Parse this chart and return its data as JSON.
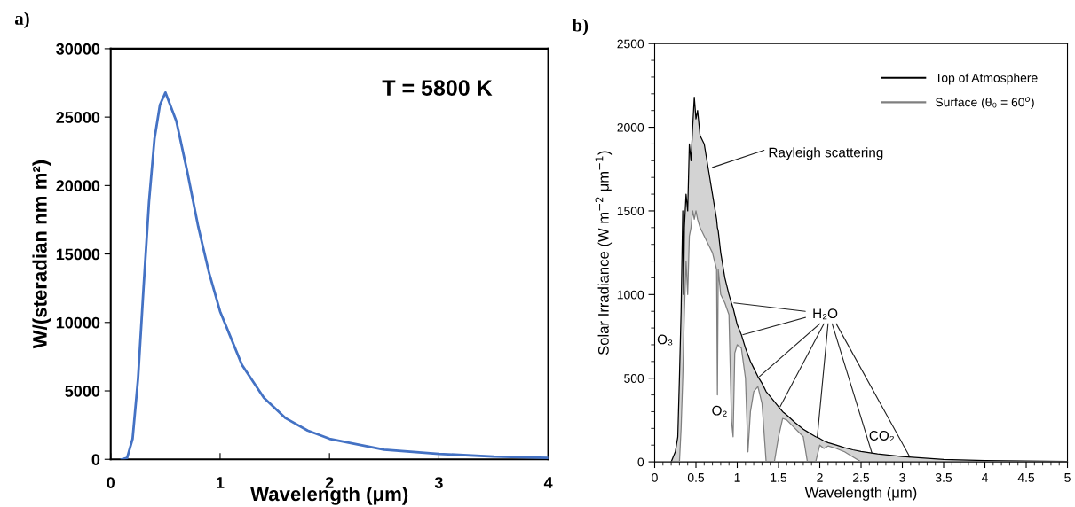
{
  "chart_data": [
    {
      "type": "line",
      "title": "a)",
      "xlabel": "Wavelength (μm)",
      "ylabel": "W/(steradian nm m²)",
      "annotations": [
        "T = 5800 K"
      ],
      "x": [
        0.1,
        0.15,
        0.2,
        0.25,
        0.3,
        0.35,
        0.4,
        0.45,
        0.5,
        0.6,
        0.7,
        0.8,
        0.9,
        1.0,
        1.2,
        1.4,
        1.6,
        1.8,
        2.0,
        2.5,
        3.0,
        3.5,
        4.0
      ],
      "series": [
        {
          "color": "#4472c4",
          "values": [
            0,
            100,
            1500,
            5900,
            12500,
            18800,
            23400,
            25900,
            26800,
            24700,
            21000,
            17000,
            13600,
            10800,
            6900,
            4500,
            3000,
            2100,
            1500,
            700,
            400,
            200,
            100
          ]
        }
      ],
      "xlim": [
        0,
        4
      ],
      "xticks": [
        0,
        1,
        2,
        3,
        4
      ],
      "ylim": [
        0,
        30000
      ],
      "yticks": [
        0,
        5000,
        10000,
        15000,
        20000,
        25000,
        30000
      ],
      "grid": false,
      "legend": false
    },
    {
      "type": "line",
      "title": "b)",
      "xlabel": "Wavelength (μm)",
      "ylabel": "Solar Irradiance (W m$^{−2}$ μm$^{−1}$)",
      "annotations": [
        "O₃",
        "O₂",
        "CO₂",
        {
          "text": "Rayleigh scattering",
          "x": 0.7,
          "y": 1760
        },
        {
          "text": "H₂O",
          "x": 0.96,
          "y": 950
        }
      ],
      "x": [
        0.2,
        0.25,
        0.28,
        0.3,
        0.32,
        0.34,
        0.35,
        0.36,
        0.38,
        0.4,
        0.42,
        0.44,
        0.46,
        0.48,
        0.5,
        0.52,
        0.55,
        0.6,
        0.65,
        0.7,
        0.75,
        0.76,
        0.77,
        0.8,
        0.85,
        0.9,
        0.93,
        0.95,
        0.97,
        1.0,
        1.05,
        1.1,
        1.13,
        1.16,
        1.2,
        1.25,
        1.3,
        1.35,
        1.4,
        1.45,
        1.5,
        1.55,
        1.6,
        1.7,
        1.8,
        1.85,
        1.9,
        1.95,
        2.0,
        2.05,
        2.1,
        2.2,
        2.3,
        2.4,
        2.5,
        2.7,
        3.0,
        3.5,
        4.0,
        4.5,
        5.0
      ],
      "series": [
        {
          "name": "Top of Atmosphere",
          "color": "#000000",
          "values": [
            0,
            60,
            150,
            500,
            900,
            1500,
            1000,
            1400,
            1600,
            1500,
            1900,
            1800,
            2000,
            2180,
            2050,
            2100,
            1950,
            1900,
            1750,
            1600,
            1450,
            1400,
            1380,
            1250,
            1100,
            1000,
            950,
            920,
            880,
            820,
            760,
            680,
            640,
            600,
            560,
            510,
            470,
            420,
            390,
            360,
            330,
            300,
            280,
            235,
            195,
            180,
            165,
            150,
            140,
            125,
            115,
            100,
            85,
            72,
            62,
            48,
            32,
            15,
            8,
            5,
            3
          ],
          "lower": [
            0,
            0,
            0,
            0,
            200,
            500,
            700,
            900,
            1200,
            1000,
            1350,
            1400,
            1500,
            1450,
            1500,
            1450,
            1400,
            1350,
            1300,
            1250,
            1150,
            400,
            1150,
            1000,
            950,
            880,
            250,
            150,
            650,
            700,
            680,
            500,
            60,
            300,
            420,
            450,
            350,
            0,
            0,
            0,
            150,
            260,
            250,
            200,
            150,
            0,
            0,
            0,
            100,
            80,
            95,
            80,
            60,
            30,
            0,
            0,
            0,
            0,
            0,
            0,
            0
          ],
          "upper": [
            0,
            60,
            150,
            500,
            900,
            1500,
            1000,
            1400,
            1600,
            1500,
            1900,
            1800,
            2000,
            2180,
            2050,
            2100,
            1950,
            1900,
            1750,
            1600,
            1450,
            1400,
            1380,
            1250,
            1100,
            1000,
            950,
            920,
            880,
            820,
            760,
            680,
            640,
            600,
            560,
            510,
            470,
            420,
            390,
            360,
            330,
            300,
            280,
            235,
            195,
            180,
            165,
            150,
            140,
            125,
            115,
            100,
            85,
            72,
            62,
            48,
            32,
            15,
            8,
            5,
            3
          ]
        },
        {
          "name": "Surface (θ₀ = 60$^{o}$)",
          "color": "#7f7f7f",
          "values": [
            0,
            0,
            0,
            0,
            200,
            500,
            700,
            900,
            1200,
            1000,
            1350,
            1400,
            1500,
            1450,
            1500,
            1450,
            1400,
            1350,
            1300,
            1250,
            1150,
            400,
            1150,
            1000,
            950,
            880,
            250,
            150,
            650,
            700,
            680,
            500,
            60,
            300,
            420,
            450,
            350,
            0,
            0,
            0,
            150,
            260,
            250,
            200,
            150,
            0,
            0,
            0,
            100,
            80,
            95,
            80,
            60,
            30,
            0,
            0,
            0,
            0,
            0,
            0,
            0
          ]
        }
      ],
      "xlim": [
        0,
        5
      ],
      "xticks": [
        0,
        0.5,
        1,
        1.5,
        2,
        2.5,
        3,
        3.5,
        4,
        4.5,
        5
      ],
      "ylim": [
        0,
        2500
      ],
      "yticks": [
        0,
        500,
        1000,
        1500,
        2000,
        2500
      ],
      "grid": false,
      "legend": "top right"
    }
  ]
}
